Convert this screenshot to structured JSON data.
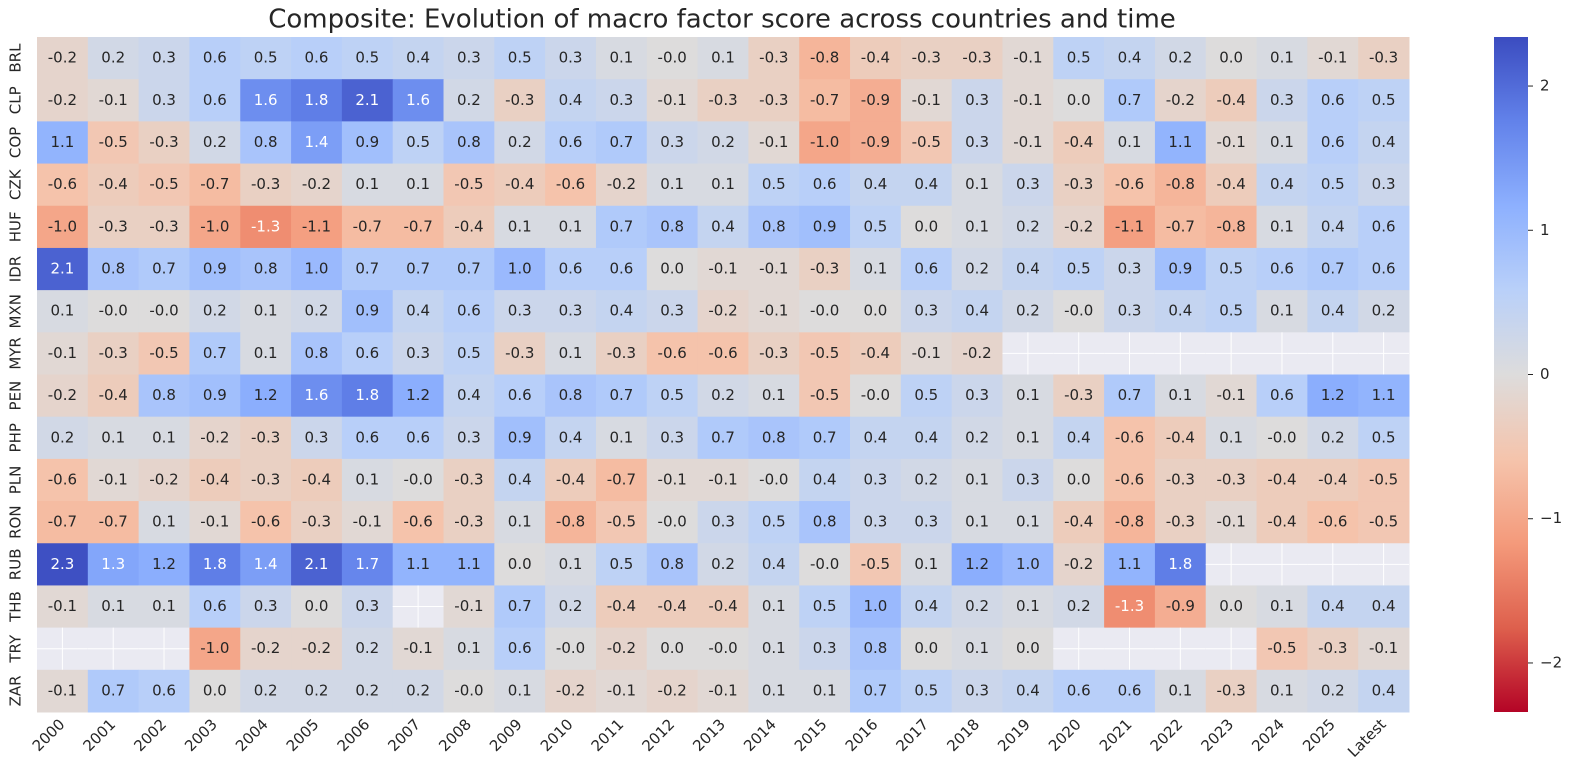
{
  "chart_data": {
    "type": "heatmap",
    "title": "Composite: Evolution of macro factor score across countries and time",
    "x_categories": [
      "2000",
      "2001",
      "2002",
      "2003",
      "2004",
      "2005",
      "2006",
      "2007",
      "2008",
      "2009",
      "2010",
      "2011",
      "2012",
      "2013",
      "2014",
      "2015",
      "2016",
      "2017",
      "2018",
      "2019",
      "2020",
      "2021",
      "2022",
      "2023",
      "2024",
      "2025",
      "Latest"
    ],
    "y_categories": [
      "BRL",
      "CLP",
      "COP",
      "CZK",
      "HUF",
      "IDR",
      "MXN",
      "MYR",
      "PEN",
      "PHP",
      "PLN",
      "RON",
      "RUB",
      "THB",
      "TRY",
      "ZAR"
    ],
    "colormap": "coolwarm_r",
    "clim": [
      -2.34,
      2.34
    ],
    "cticks": [
      {
        "value": -2,
        "label": "−2"
      },
      {
        "value": -1,
        "label": "−1"
      },
      0,
      1,
      2
    ],
    "values": [
      [
        -0.2,
        0.2,
        0.3,
        0.6,
        0.5,
        0.6,
        0.5,
        0.4,
        0.3,
        0.5,
        0.3,
        0.1,
        -0.0,
        0.1,
        -0.3,
        -0.8,
        -0.4,
        -0.3,
        -0.3,
        -0.1,
        0.5,
        0.4,
        0.2,
        0.0,
        0.1,
        -0.1,
        -0.3
      ],
      [
        -0.2,
        -0.1,
        0.3,
        0.6,
        1.6,
        1.8,
        2.1,
        1.6,
        0.2,
        -0.3,
        0.4,
        0.3,
        -0.1,
        -0.3,
        -0.3,
        -0.7,
        -0.9,
        -0.1,
        0.3,
        -0.1,
        0.0,
        0.7,
        -0.2,
        -0.4,
        0.3,
        0.6,
        0.5
      ],
      [
        1.1,
        -0.5,
        -0.3,
        0.2,
        0.8,
        1.4,
        0.9,
        0.5,
        0.8,
        0.2,
        0.6,
        0.7,
        0.3,
        0.2,
        -0.1,
        -1.0,
        -0.9,
        -0.5,
        0.3,
        -0.1,
        -0.4,
        0.1,
        1.1,
        -0.1,
        0.1,
        0.6,
        0.4
      ],
      [
        -0.6,
        -0.4,
        -0.5,
        -0.7,
        -0.3,
        -0.2,
        0.1,
        0.1,
        -0.5,
        -0.4,
        -0.6,
        -0.2,
        0.1,
        0.1,
        0.5,
        0.6,
        0.4,
        0.4,
        0.1,
        0.3,
        -0.3,
        -0.6,
        -0.8,
        -0.4,
        0.4,
        0.5,
        0.3
      ],
      [
        -1.0,
        -0.3,
        -0.3,
        -1.0,
        -1.3,
        -1.1,
        -0.7,
        -0.7,
        -0.4,
        0.1,
        0.1,
        0.7,
        0.8,
        0.4,
        0.8,
        0.9,
        0.5,
        0.0,
        0.1,
        0.2,
        -0.2,
        -1.1,
        -0.7,
        -0.8,
        0.1,
        0.4,
        0.6
      ],
      [
        2.1,
        0.8,
        0.7,
        0.9,
        0.8,
        1.0,
        0.7,
        0.7,
        0.7,
        1.0,
        0.6,
        0.6,
        0.0,
        -0.1,
        -0.1,
        -0.3,
        0.1,
        0.6,
        0.2,
        0.4,
        0.5,
        0.3,
        0.9,
        0.5,
        0.6,
        0.7,
        0.6
      ],
      [
        0.1,
        -0.0,
        -0.0,
        0.2,
        0.1,
        0.2,
        0.9,
        0.4,
        0.6,
        0.3,
        0.3,
        0.4,
        0.3,
        -0.2,
        -0.1,
        -0.0,
        0.0,
        0.3,
        0.4,
        0.2,
        -0.0,
        0.3,
        0.4,
        0.5,
        0.1,
        0.4,
        0.2
      ],
      [
        -0.1,
        -0.3,
        -0.5,
        0.7,
        0.1,
        0.8,
        0.6,
        0.3,
        0.5,
        -0.3,
        0.1,
        -0.3,
        -0.6,
        -0.6,
        -0.3,
        -0.5,
        -0.4,
        -0.1,
        -0.2,
        null,
        null,
        null,
        null,
        null,
        null,
        null,
        null
      ],
      [
        -0.2,
        -0.4,
        0.8,
        0.9,
        1.2,
        1.6,
        1.8,
        1.2,
        0.4,
        0.6,
        0.8,
        0.7,
        0.5,
        0.2,
        0.1,
        -0.5,
        -0.0,
        0.5,
        0.3,
        0.1,
        -0.3,
        0.7,
        0.1,
        -0.1,
        0.6,
        1.2,
        1.1
      ],
      [
        0.2,
        0.1,
        0.1,
        -0.2,
        -0.3,
        0.3,
        0.6,
        0.6,
        0.3,
        0.9,
        0.4,
        0.1,
        0.3,
        0.7,
        0.8,
        0.7,
        0.4,
        0.4,
        0.2,
        0.1,
        0.4,
        -0.6,
        -0.4,
        0.1,
        -0.0,
        0.2,
        0.5
      ],
      [
        -0.6,
        -0.1,
        -0.2,
        -0.4,
        -0.3,
        -0.4,
        0.1,
        -0.0,
        -0.3,
        0.4,
        -0.4,
        -0.7,
        -0.1,
        -0.1,
        -0.0,
        0.4,
        0.3,
        0.2,
        0.1,
        0.3,
        0.0,
        -0.6,
        -0.3,
        -0.3,
        -0.4,
        -0.4,
        -0.5
      ],
      [
        -0.7,
        -0.7,
        0.1,
        -0.1,
        -0.6,
        -0.3,
        -0.1,
        -0.6,
        -0.3,
        0.1,
        -0.8,
        -0.5,
        -0.0,
        0.3,
        0.5,
        0.8,
        0.3,
        0.3,
        0.1,
        0.1,
        -0.4,
        -0.8,
        -0.3,
        -0.1,
        -0.4,
        -0.6,
        -0.5
      ],
      [
        2.3,
        1.3,
        1.2,
        1.8,
        1.4,
        2.1,
        1.7,
        1.1,
        1.1,
        0.0,
        0.1,
        0.5,
        0.8,
        0.2,
        0.4,
        -0.0,
        -0.5,
        0.1,
        1.2,
        1.0,
        -0.2,
        1.1,
        1.8,
        null,
        null,
        null,
        null
      ],
      [
        -0.1,
        0.1,
        0.1,
        0.6,
        0.3,
        0.0,
        0.3,
        null,
        -0.1,
        0.7,
        0.2,
        -0.4,
        -0.4,
        -0.4,
        0.1,
        0.5,
        1.0,
        0.4,
        0.2,
        0.1,
        0.2,
        -1.3,
        -0.9,
        0.0,
        0.1,
        0.4,
        0.4
      ],
      [
        null,
        null,
        null,
        -1.0,
        -0.2,
        -0.2,
        0.2,
        -0.1,
        0.1,
        0.6,
        -0.0,
        -0.2,
        0.0,
        -0.0,
        0.1,
        0.3,
        0.8,
        0.0,
        0.1,
        0.0,
        null,
        null,
        null,
        null,
        -0.5,
        -0.3,
        -0.1
      ],
      [
        -0.1,
        0.7,
        0.6,
        0.0,
        0.2,
        0.2,
        0.2,
        0.2,
        -0.0,
        0.1,
        -0.2,
        -0.1,
        -0.2,
        -0.1,
        0.1,
        0.1,
        0.7,
        0.5,
        0.3,
        0.4,
        0.6,
        0.6,
        0.1,
        -0.3,
        0.1,
        0.2,
        0.4
      ]
    ],
    "value_labels": [
      [
        "-0.2",
        "0.2",
        "0.3",
        "0.6",
        "0.5",
        "0.6",
        "0.5",
        "0.4",
        "0.3",
        "0.5",
        "0.3",
        "0.1",
        "-0.0",
        "0.1",
        "-0.3",
        "-0.8",
        "-0.4",
        "-0.3",
        "-0.3",
        "-0.1",
        "0.5",
        "0.4",
        "0.2",
        "0.0",
        "0.1",
        "-0.1",
        "-0.3"
      ],
      [
        "-0.2",
        "-0.1",
        "0.3",
        "0.6",
        "1.6",
        "1.8",
        "2.1",
        "1.6",
        "0.2",
        "-0.3",
        "0.4",
        "0.3",
        "-0.1",
        "-0.3",
        "-0.3",
        "-0.7",
        "-0.9",
        "-0.1",
        "0.3",
        "-0.1",
        "0.0",
        "0.7",
        "-0.2",
        "-0.4",
        "0.3",
        "0.6",
        "0.5"
      ],
      [
        "1.1",
        "-0.5",
        "-0.3",
        "0.2",
        "0.8",
        "1.4",
        "0.9",
        "0.5",
        "0.8",
        "0.2",
        "0.6",
        "0.7",
        "0.3",
        "0.2",
        "-0.1",
        "-1.0",
        "-0.9",
        "-0.5",
        "0.3",
        "-0.1",
        "-0.4",
        "0.1",
        "1.1",
        "-0.1",
        "0.1",
        "0.6",
        "0.4"
      ],
      [
        "-0.6",
        "-0.4",
        "-0.5",
        "-0.7",
        "-0.3",
        "-0.2",
        "0.1",
        "0.1",
        "-0.5",
        "-0.4",
        "-0.6",
        "-0.2",
        "0.1",
        "0.1",
        "0.5",
        "0.6",
        "0.4",
        "0.4",
        "0.1",
        "0.3",
        "-0.3",
        "-0.6",
        "-0.8",
        "-0.4",
        "0.4",
        "0.5",
        "0.3"
      ],
      [
        "-1.0",
        "-0.3",
        "-0.3",
        "-1.0",
        "-1.3",
        "-1.1",
        "-0.7",
        "-0.7",
        "-0.4",
        "0.1",
        "0.1",
        "0.7",
        "0.8",
        "0.4",
        "0.8",
        "0.9",
        "0.5",
        "0.0",
        "0.1",
        "0.2",
        "-0.2",
        "-1.1",
        "-0.7",
        "-0.8",
        "0.1",
        "0.4",
        "0.6"
      ],
      [
        "2.1",
        "0.8",
        "0.7",
        "0.9",
        "0.8",
        "1.0",
        "0.7",
        "0.7",
        "0.7",
        "1.0",
        "0.6",
        "0.6",
        "0.0",
        "-0.1",
        "-0.1",
        "-0.3",
        "0.1",
        "0.6",
        "0.2",
        "0.4",
        "0.5",
        "0.3",
        "0.9",
        "0.5",
        "0.6",
        "0.7",
        "0.6"
      ],
      [
        "0.1",
        "-0.0",
        "-0.0",
        "0.2",
        "0.1",
        "0.2",
        "0.9",
        "0.4",
        "0.6",
        "0.3",
        "0.3",
        "0.4",
        "0.3",
        "-0.2",
        "-0.1",
        "-0.0",
        "0.0",
        "0.3",
        "0.4",
        "0.2",
        "-0.0",
        "0.3",
        "0.4",
        "0.5",
        "0.1",
        "0.4",
        "0.2"
      ],
      [
        "-0.1",
        "-0.3",
        "-0.5",
        "0.7",
        "0.1",
        "0.8",
        "0.6",
        "0.3",
        "0.5",
        "-0.3",
        "0.1",
        "-0.3",
        "-0.6",
        "-0.6",
        "-0.3",
        "-0.5",
        "-0.4",
        "-0.1",
        "-0.2",
        null,
        null,
        null,
        null,
        null,
        null,
        null,
        null
      ],
      [
        "-0.2",
        "-0.4",
        "0.8",
        "0.9",
        "1.2",
        "1.6",
        "1.8",
        "1.2",
        "0.4",
        "0.6",
        "0.8",
        "0.7",
        "0.5",
        "0.2",
        "0.1",
        "-0.5",
        "-0.0",
        "0.5",
        "0.3",
        "0.1",
        "-0.3",
        "0.7",
        "0.1",
        "-0.1",
        "0.6",
        "1.2",
        "1.1"
      ],
      [
        "0.2",
        "0.1",
        "0.1",
        "-0.2",
        "-0.3",
        "0.3",
        "0.6",
        "0.6",
        "0.3",
        "0.9",
        "0.4",
        "0.1",
        "0.3",
        "0.7",
        "0.8",
        "0.7",
        "0.4",
        "0.4",
        "0.2",
        "0.1",
        "0.4",
        "-0.6",
        "-0.4",
        "0.1",
        "-0.0",
        "0.2",
        "0.5"
      ],
      [
        "-0.6",
        "-0.1",
        "-0.2",
        "-0.4",
        "-0.3",
        "-0.4",
        "0.1",
        "-0.0",
        "-0.3",
        "0.4",
        "-0.4",
        "-0.7",
        "-0.1",
        "-0.1",
        "-0.0",
        "0.4",
        "0.3",
        "0.2",
        "0.1",
        "0.3",
        "0.0",
        "-0.6",
        "-0.3",
        "-0.3",
        "-0.4",
        "-0.4",
        "-0.5"
      ],
      [
        "-0.7",
        "-0.7",
        "0.1",
        "-0.1",
        "-0.6",
        "-0.3",
        "-0.1",
        "-0.6",
        "-0.3",
        "0.1",
        "-0.8",
        "-0.5",
        "-0.0",
        "0.3",
        "0.5",
        "0.8",
        "0.3",
        "0.3",
        "0.1",
        "0.1",
        "-0.4",
        "-0.8",
        "-0.3",
        "-0.1",
        "-0.4",
        "-0.6",
        "-0.5"
      ],
      [
        "2.3",
        "1.3",
        "1.2",
        "1.8",
        "1.4",
        "2.1",
        "1.7",
        "1.1",
        "1.1",
        "0.0",
        "0.1",
        "0.5",
        "0.8",
        "0.2",
        "0.4",
        "-0.0",
        "-0.5",
        "0.1",
        "1.2",
        "1.0",
        "-0.2",
        "1.1",
        "1.8",
        null,
        null,
        null,
        null
      ],
      [
        "-0.1",
        "0.1",
        "0.1",
        "0.6",
        "0.3",
        "0.0",
        "0.3",
        null,
        "-0.1",
        "0.7",
        "0.2",
        "-0.4",
        "-0.4",
        "-0.4",
        "0.1",
        "0.5",
        "1.0",
        "0.4",
        "0.2",
        "0.1",
        "0.2",
        "-1.3",
        "-0.9",
        "0.0",
        "0.1",
        "0.4",
        "0.4"
      ],
      [
        null,
        null,
        null,
        "-1.0",
        "-0.2",
        "-0.2",
        "0.2",
        "-0.1",
        "0.1",
        "0.6",
        "-0.0",
        "-0.2",
        "0.0",
        "-0.0",
        "0.1",
        "0.3",
        "0.8",
        "0.0",
        "0.1",
        "0.0",
        null,
        null,
        null,
        null,
        "-0.5",
        "-0.3",
        "-0.1"
      ],
      [
        "-0.1",
        "0.7",
        "0.6",
        "0.0",
        "0.2",
        "0.2",
        "0.2",
        "0.2",
        "-0.0",
        "0.1",
        "-0.2",
        "-0.1",
        "-0.2",
        "-0.1",
        "0.1",
        "0.1",
        "0.7",
        "0.5",
        "0.3",
        "0.4",
        "0.6",
        "0.6",
        "0.1",
        "-0.3",
        "0.1",
        "0.2",
        "0.4"
      ]
    ]
  }
}
